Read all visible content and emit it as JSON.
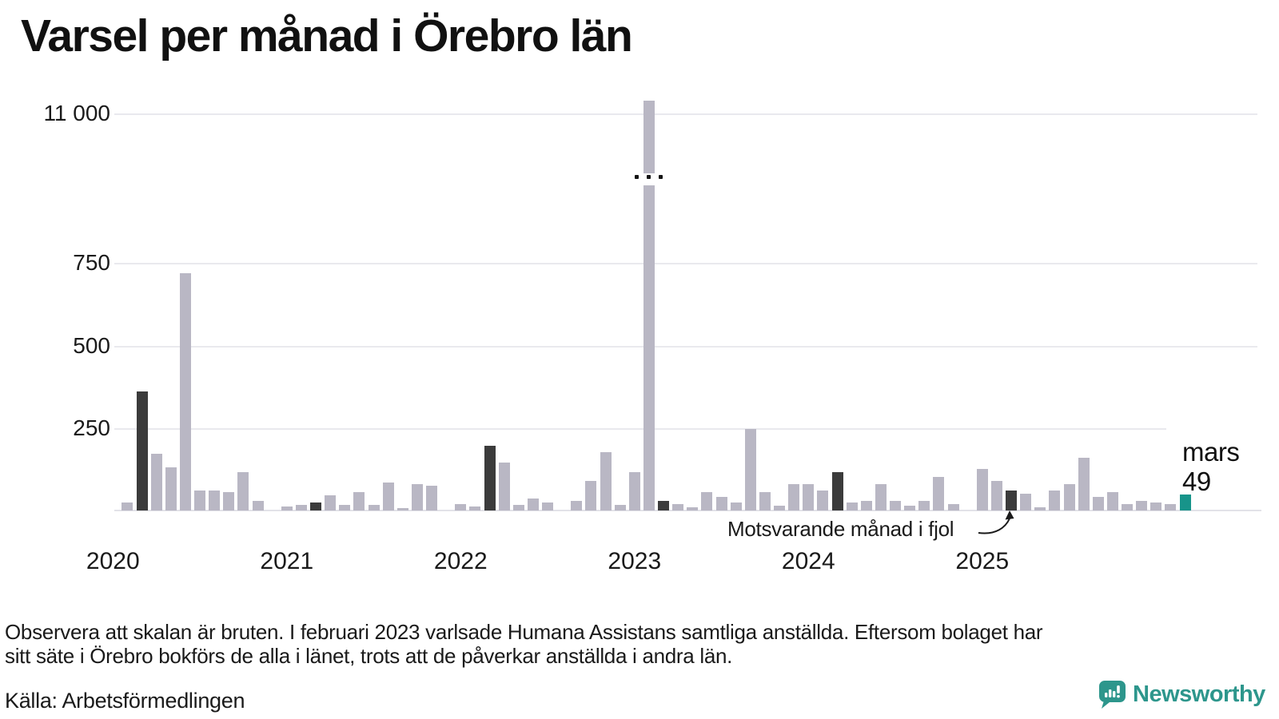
{
  "title": "Varsel per månad i Örebro län",
  "annotation": "Motsvarande månad i fjol",
  "latest": {
    "month": "mars",
    "value": "49"
  },
  "footnote_line1": "Observera att skalan är bruten. I februari 2023 varlsade Humana Assistans samtliga anställda. Eftersom bolaget har",
  "footnote_line2": "sitt säte i Örebro bokförs de alla i länet, trots att de påverkar anställda i andra län.",
  "source": "Källa: Arbetsförmedlingen",
  "logo_text": "Newsworthy",
  "colors": {
    "bar_normal": "#b9b7c4",
    "bar_same_month_prev_years": "#3b3b3b",
    "bar_current_month": "#17948a",
    "gridline": "#e9e9ee",
    "text": "#1a1a1a",
    "logo_teal": "#2d968c"
  },
  "chart_data": {
    "type": "bar",
    "title": "Varsel per månad i Örebro län",
    "broken_scale": true,
    "y_tick_labels": [
      "11 000",
      "750",
      "500",
      "250"
    ],
    "y_tick_values": [
      11000,
      750,
      500,
      250
    ],
    "x_tick_labels": [
      "2020",
      "2021",
      "2022",
      "2023",
      "2024",
      "2025"
    ],
    "legend": {
      "dark_bars": "Motsvarande månad i fjol (mars varje år)",
      "teal_bar": "mars (senaste månad), värde 49"
    },
    "months": [
      {
        "m": "jan 2020",
        "v": 0,
        "c": "gray"
      },
      {
        "m": "feb 2020",
        "v": 25,
        "c": "gray"
      },
      {
        "m": "mars 2020",
        "v": 360,
        "c": "dark"
      },
      {
        "m": "april 2020",
        "v": 170,
        "c": "gray"
      },
      {
        "m": "maj 2020",
        "v": 130,
        "c": "gray"
      },
      {
        "m": "juni 2020",
        "v": 715,
        "c": "gray"
      },
      {
        "m": "juli 2020",
        "v": 60,
        "c": "gray"
      },
      {
        "m": "aug 2020",
        "v": 60,
        "c": "gray"
      },
      {
        "m": "sep 2020",
        "v": 55,
        "c": "gray"
      },
      {
        "m": "okt 2020",
        "v": 115,
        "c": "gray"
      },
      {
        "m": "nov 2020",
        "v": 30,
        "c": "gray"
      },
      {
        "m": "dec 2020",
        "v": 0,
        "c": "gray"
      },
      {
        "m": "jan 2021",
        "v": 12,
        "c": "gray"
      },
      {
        "m": "feb 2021",
        "v": 18,
        "c": "gray"
      },
      {
        "m": "mars 2021",
        "v": 25,
        "c": "dark"
      },
      {
        "m": "april 2021",
        "v": 45,
        "c": "gray"
      },
      {
        "m": "maj 2021",
        "v": 18,
        "c": "gray"
      },
      {
        "m": "juni 2021",
        "v": 55,
        "c": "gray"
      },
      {
        "m": "juli 2021",
        "v": 18,
        "c": "gray"
      },
      {
        "m": "aug 2021",
        "v": 85,
        "c": "gray"
      },
      {
        "m": "sep 2021",
        "v": 8,
        "c": "gray"
      },
      {
        "m": "okt 2021",
        "v": 80,
        "c": "gray"
      },
      {
        "m": "nov 2021",
        "v": 75,
        "c": "gray"
      },
      {
        "m": "dec 2021",
        "v": 0,
        "c": "gray"
      },
      {
        "m": "jan 2022",
        "v": 20,
        "c": "gray"
      },
      {
        "m": "feb 2022",
        "v": 12,
        "c": "gray"
      },
      {
        "m": "mars 2022",
        "v": 195,
        "c": "dark"
      },
      {
        "m": "april 2022",
        "v": 145,
        "c": "gray"
      },
      {
        "m": "maj 2022",
        "v": 18,
        "c": "gray"
      },
      {
        "m": "juni 2022",
        "v": 35,
        "c": "gray"
      },
      {
        "m": "juli 2022",
        "v": 25,
        "c": "gray"
      },
      {
        "m": "aug 2022",
        "v": 0,
        "c": "gray"
      },
      {
        "m": "sep 2022",
        "v": 28,
        "c": "gray"
      },
      {
        "m": "okt 2022",
        "v": 90,
        "c": "gray"
      },
      {
        "m": "nov 2022",
        "v": 175,
        "c": "gray"
      },
      {
        "m": "dec 2022",
        "v": 18,
        "c": "gray"
      },
      {
        "m": "jan 2023",
        "v": 115,
        "c": "gray"
      },
      {
        "m": "feb 2023",
        "v": 11100,
        "c": "gray",
        "broken": true
      },
      {
        "m": "mars 2023",
        "v": 30,
        "c": "dark"
      },
      {
        "m": "april 2023",
        "v": 20,
        "c": "gray"
      },
      {
        "m": "maj 2023",
        "v": 10,
        "c": "gray"
      },
      {
        "m": "juni 2023",
        "v": 55,
        "c": "gray"
      },
      {
        "m": "juli 2023",
        "v": 40,
        "c": "gray"
      },
      {
        "m": "aug 2023",
        "v": 25,
        "c": "gray"
      },
      {
        "m": "sep 2023",
        "v": 245,
        "c": "gray"
      },
      {
        "m": "okt 2023",
        "v": 55,
        "c": "gray"
      },
      {
        "m": "nov 2023",
        "v": 15,
        "c": "gray"
      },
      {
        "m": "dec 2023",
        "v": 80,
        "c": "gray"
      },
      {
        "m": "jan 2024",
        "v": 80,
        "c": "gray"
      },
      {
        "m": "feb 2024",
        "v": 60,
        "c": "gray"
      },
      {
        "m": "mars 2024",
        "v": 115,
        "c": "dark"
      },
      {
        "m": "april 2024",
        "v": 25,
        "c": "gray"
      },
      {
        "m": "maj 2024",
        "v": 30,
        "c": "gray"
      },
      {
        "m": "juni 2024",
        "v": 80,
        "c": "gray"
      },
      {
        "m": "juli 2024",
        "v": 30,
        "c": "gray"
      },
      {
        "m": "aug 2024",
        "v": 15,
        "c": "gray"
      },
      {
        "m": "sep 2024",
        "v": 30,
        "c": "gray"
      },
      {
        "m": "okt 2024",
        "v": 100,
        "c": "gray"
      },
      {
        "m": "nov 2024",
        "v": 20,
        "c": "gray"
      },
      {
        "m": "dec 2024",
        "v": 0,
        "c": "gray"
      },
      {
        "m": "jan 2025",
        "v": 125,
        "c": "gray"
      },
      {
        "m": "feb 2025",
        "v": 90,
        "c": "gray"
      },
      {
        "m": "mars 2025",
        "v": 60,
        "c": "dark"
      },
      {
        "m": "april 2025",
        "v": 50,
        "c": "gray"
      },
      {
        "m": "maj 2025",
        "v": 10,
        "c": "gray"
      },
      {
        "m": "juni 2025",
        "v": 60,
        "c": "gray"
      },
      {
        "m": "juli 2025",
        "v": 80,
        "c": "gray"
      },
      {
        "m": "aug 2025",
        "v": 160,
        "c": "gray"
      },
      {
        "m": "sep 2025",
        "v": 40,
        "c": "gray"
      },
      {
        "m": "okt 2025",
        "v": 55,
        "c": "gray"
      },
      {
        "m": "nov 2025",
        "v": 20,
        "c": "gray"
      },
      {
        "m": "dec 2025",
        "v": 30,
        "c": "gray"
      },
      {
        "m": "jan 2026",
        "v": 25,
        "c": "gray"
      },
      {
        "m": "feb 2026",
        "v": 20,
        "c": "gray"
      },
      {
        "m": "mars 2026",
        "v": 49,
        "c": "teal"
      }
    ]
  }
}
